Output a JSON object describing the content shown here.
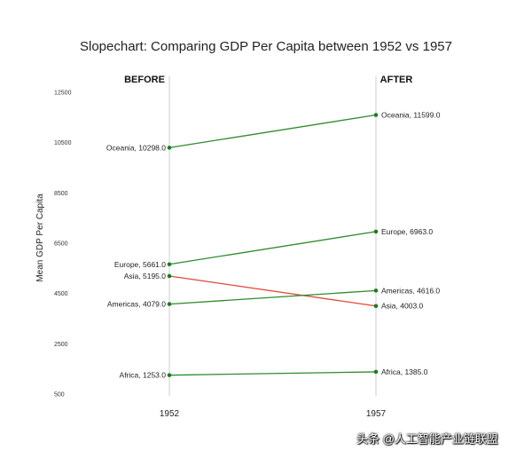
{
  "chart_data": {
    "type": "line",
    "title": "Slopechart: Comparing GDP Per Capita between 1952 vs 1957",
    "ylabel": "Mean GDP Per Capita",
    "before_label": "BEFORE",
    "after_label": "AFTER",
    "x": [
      "1952",
      "1957"
    ],
    "yticks": [
      "500",
      "2500",
      "4500",
      "6500",
      "8500",
      "10500",
      "12500"
    ],
    "ylim": [
      500,
      12500
    ],
    "series": [
      {
        "name": "Oceania",
        "values": [
          10298.0,
          11599.0
        ],
        "labels": [
          "Oceania, 10298.0",
          "Oceania, 11599.0"
        ],
        "color": "#2e8b2e"
      },
      {
        "name": "Europe",
        "values": [
          5661.0,
          6963.0
        ],
        "labels": [
          "Europe, 5661.0",
          "Europe, 6963.0"
        ],
        "color": "#2e8b2e"
      },
      {
        "name": "Asia",
        "values": [
          5195.0,
          4003.0
        ],
        "labels": [
          "Asia, 5195.0",
          "Asia, 4003.0"
        ],
        "color": "#e0483a"
      },
      {
        "name": "Americas",
        "values": [
          4079.0,
          4616.0
        ],
        "labels": [
          "Americas, 4079.0",
          "Americas, 4616.0"
        ],
        "color": "#2e8b2e"
      },
      {
        "name": "Africa",
        "values": [
          1253.0,
          1385.0
        ],
        "labels": [
          "Africa, 1253.0",
          "Africa, 1385.0"
        ],
        "color": "#2e8b2e"
      }
    ]
  },
  "watermark": "头条 @人工智能产业链联盟"
}
